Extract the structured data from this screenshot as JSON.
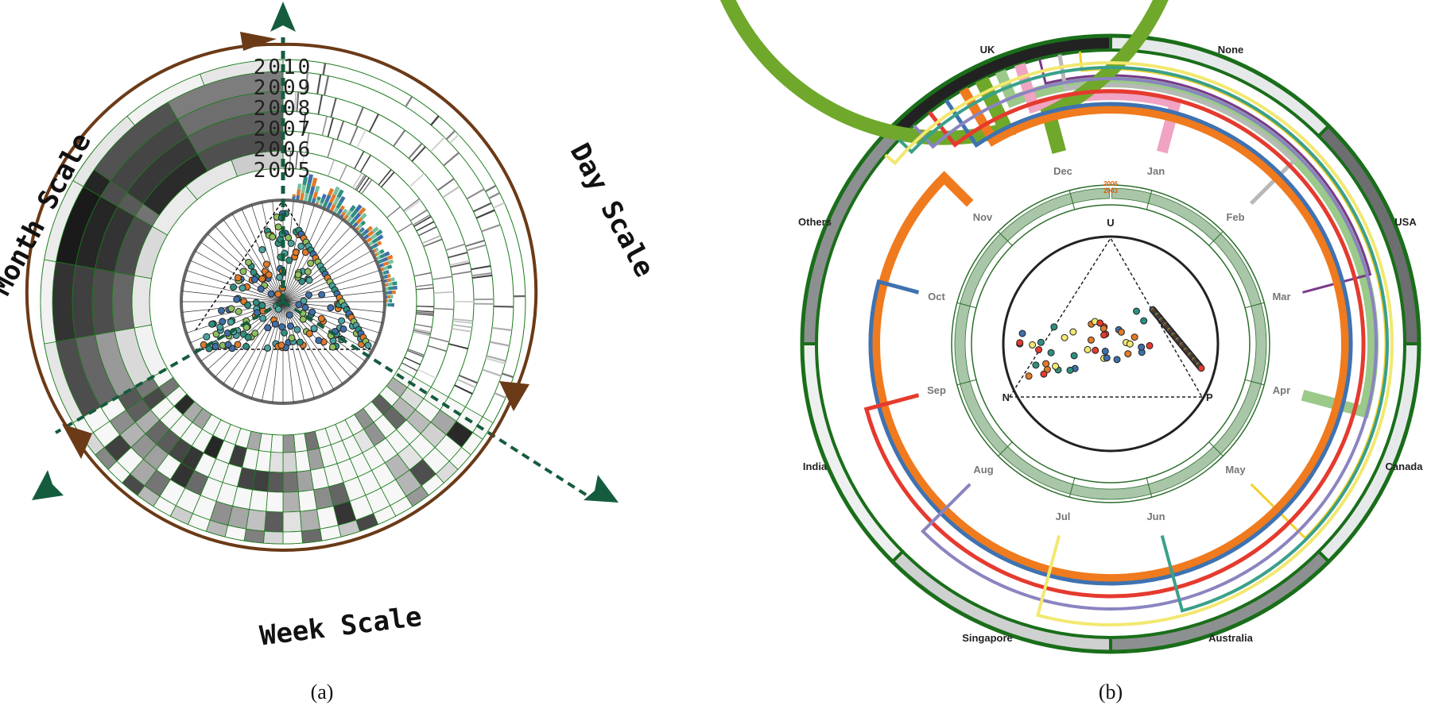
{
  "panel_a": {
    "caption": "(a)",
    "scale_labels": {
      "month": "Month Scale",
      "day": "Day Scale",
      "week": "Week Scale"
    },
    "years": [
      "2010",
      "2009",
      "2008",
      "2007",
      "2006",
      "2005"
    ],
    "colors": {
      "arrow": "#6b3a17",
      "axis": "#155c3e",
      "grid": "#1a7a1a"
    }
  },
  "panel_b": {
    "caption": "(b)",
    "countries": [
      "UK",
      "None",
      "USA",
      "Canada",
      "Australia",
      "Singapore",
      "India",
      "Others"
    ],
    "months": [
      "Jan",
      "Feb",
      "Mar",
      "Apr",
      "May",
      "Jun",
      "Jul",
      "Aug",
      "Sep",
      "Oct",
      "Nov",
      "Dec"
    ],
    "ternary_labels": {
      "top": "U",
      "left": "N",
      "right": "P"
    },
    "inner_years": [
      "2006",
      "2003"
    ],
    "colors": {
      "ring": "#1a6e1a",
      "year_text": "#e05a00"
    }
  }
}
